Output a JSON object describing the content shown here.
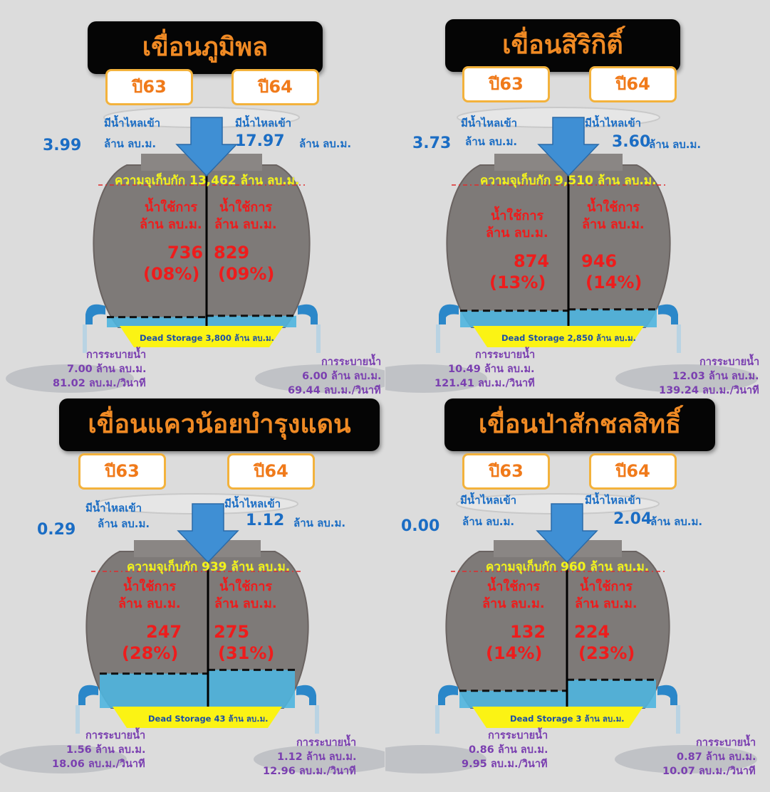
{
  "dams": [
    {
      "name": "เขื่อนภูมิพล",
      "year_left": "ปี63",
      "year_right": "ปี64",
      "inflow_label": "มีน้ำไหลเข้า",
      "unit": "ล้าน ลบ.ม.",
      "inflow_left": "3.99",
      "inflow_right": "17.97",
      "capacity_text": "ความจุเก็บกัก 13,462 ล้าน ลบ.ม.",
      "use_label": "น้ำใช้การ",
      "use_left": "736",
      "pct_left": "(08%)",
      "use_right": "829",
      "pct_right": "(09%)",
      "fill_left_fraction": 0.08,
      "fill_right_fraction": 0.09,
      "dead_storage": "Dead Storage 3,800 ล้าน ลบ.ม.",
      "release_label": "การระบายน้ำ",
      "release_left_vol": "7.00 ล้าน ลบ.ม.",
      "release_left_rate": "81.02 ลบ.ม./วินาที",
      "release_right_vol": "6.00 ล้าน ลบ.ม.",
      "release_right_rate": "69.44 ลบ.ม./วินาที"
    },
    {
      "name": "เขื่อนสิริกิติ์",
      "year_left": "ปี63",
      "year_right": "ปี64",
      "inflow_label": "มีน้ำไหลเข้า",
      "unit": "ล้าน ลบ.ม.",
      "inflow_left": "3.73",
      "inflow_right": "3.60",
      "capacity_text": "ความจุเก็บกัก 9,510 ล้าน ลบ.ม.",
      "use_label": "น้ำใช้การ",
      "use_left": "874",
      "pct_left": "(13%)",
      "use_right": "946",
      "pct_right": "(14%)",
      "fill_left_fraction": 0.13,
      "fill_right_fraction": 0.14,
      "dead_storage": "Dead Storage 2,850 ล้าน ลบ.ม.",
      "release_label": "การระบายน้ำ",
      "release_left_vol": "10.49 ล้าน ลบ.ม.",
      "release_left_rate": "121.41 ลบ.ม./วินาที",
      "release_right_vol": "12.03 ล้าน ลบ.ม.",
      "release_right_rate": "139.24 ลบ.ม./วินาที"
    },
    {
      "name": "เขื่อนแควน้อยบำรุงแดน",
      "year_left": "ปี63",
      "year_right": "ปี64",
      "inflow_label": "มีน้ำไหลเข้า",
      "unit": "ล้าน ลบ.ม.",
      "inflow_left": "0.29",
      "inflow_right": "1.12",
      "capacity_text": "ความจุเก็บกัก 939 ล้าน ลบ.ม.",
      "use_label": "น้ำใช้การ",
      "use_left": "247",
      "pct_left": "(28%)",
      "use_right": "275",
      "pct_right": "(31%)",
      "fill_left_fraction": 0.28,
      "fill_right_fraction": 0.31,
      "dead_storage": "Dead Storage 43 ล้าน ลบ.ม.",
      "release_label": "การระบายน้ำ",
      "release_left_vol": "1.56 ล้าน ลบ.ม.",
      "release_left_rate": "18.06 ลบ.ม./วินาที",
      "release_right_vol": "1.12 ล้าน ลบ.ม.",
      "release_right_rate": "12.96 ลบ.ม./วินาที"
    },
    {
      "name": "เขื่อนป่าสักชลสิทธิ์",
      "year_left": "ปี63",
      "year_right": "ปี64",
      "inflow_label": "มีน้ำไหลเข้า",
      "unit": "ล้าน ลบ.ม.",
      "inflow_left": "0.00",
      "inflow_right": "2.04",
      "capacity_text": "ความจุเก็บกัก 960 ล้าน ลบ.ม.",
      "use_label": "น้ำใช้การ",
      "use_left": "132",
      "pct_left": "(14%)",
      "use_right": "224",
      "pct_right": "(23%)",
      "fill_left_fraction": 0.14,
      "fill_right_fraction": 0.23,
      "dead_storage": "Dead Storage 3 ล้าน ลบ.ม.",
      "release_label": "การระบายน้ำ",
      "release_left_vol": "0.86 ล้าน ลบ.ม.",
      "release_left_rate": "9.95 ลบ.ม./วินาที",
      "release_right_vol": "0.87 ล้าน ลบ.ม.",
      "release_right_rate": "10.07 ลบ.ม./วินาที"
    }
  ],
  "colors": {
    "banner_bg": "#050505",
    "banner_text": "#f08a24",
    "year_border": "#f3b23c",
    "inflow_blue": "#1b6dc4",
    "usage_red": "#ee1c1c",
    "capacity_yellow": "#f2f21a",
    "release_purple": "#7a3fb0",
    "dead_storage_yellow": "#fbf314",
    "water": "#4fb5df",
    "pot": "#7e7a78"
  }
}
